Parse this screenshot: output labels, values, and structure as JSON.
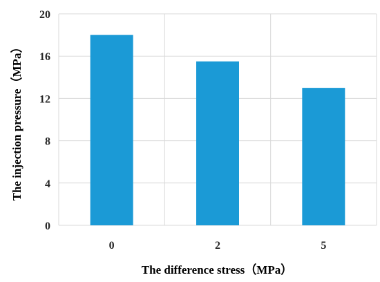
{
  "chart_data": {
    "type": "bar",
    "categories": [
      "0",
      "2",
      "5"
    ],
    "values": [
      18,
      15.5,
      13
    ],
    "xlabel": "The difference stress（MPa）",
    "ylabel": "The injection pressure（MPa）",
    "ylim": [
      0,
      20
    ],
    "yticks": [
      "0",
      "4",
      "8",
      "12",
      "16",
      "20"
    ],
    "grid": true,
    "bar_color": "#1b9ad6"
  }
}
